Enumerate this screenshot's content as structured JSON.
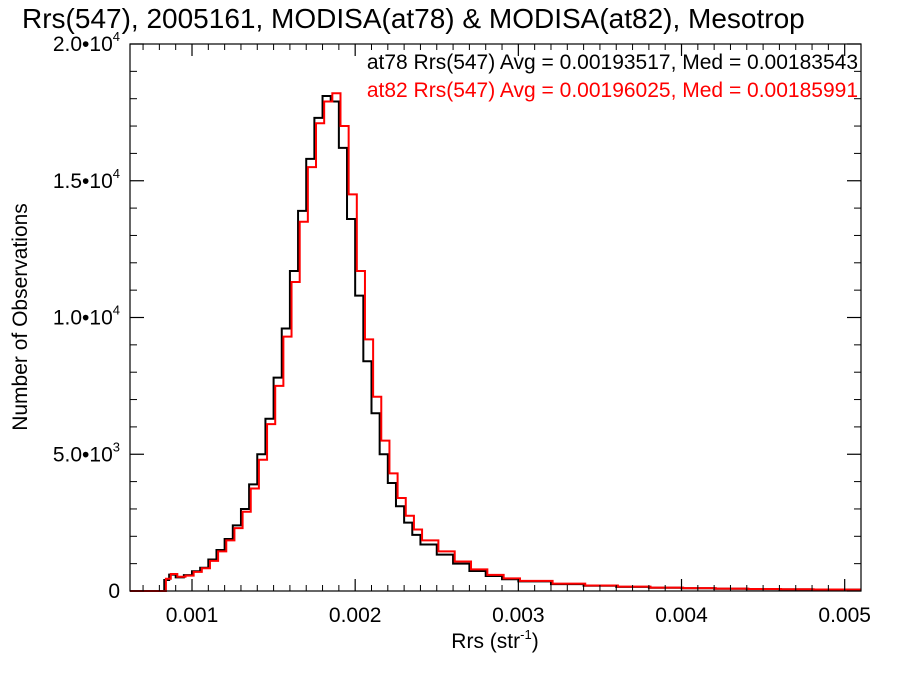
{
  "chart_data": {
    "type": "line",
    "title": "Rrs(547), 2005161, MODISA(at78) & MODISA(at82), Mesotrop",
    "xlabel": "Rrs (str",
    "xlabel_sup": "-1",
    "xlabel_close": ")",
    "ylabel": "Number of Observations",
    "xlim": [
      0.00062,
      0.0051
    ],
    "ylim": [
      0,
      20000
    ],
    "x_ticks": [
      {
        "value": 0.001,
        "label": "0.001"
      },
      {
        "value": 0.002,
        "label": "0.002"
      },
      {
        "value": 0.003,
        "label": "0.003"
      },
      {
        "value": 0.004,
        "label": "0.004"
      },
      {
        "value": 0.005,
        "label": "0.005"
      }
    ],
    "y_ticks": [
      {
        "value": 0,
        "mant": "0",
        "exp": ""
      },
      {
        "value": 5000,
        "mant": "5.0•10",
        "exp": "3"
      },
      {
        "value": 10000,
        "mant": "1.0•10",
        "exp": "4"
      },
      {
        "value": 15000,
        "mant": "1.5•10",
        "exp": "4"
      },
      {
        "value": 20000,
        "mant": "2.0•10",
        "exp": "4"
      }
    ],
    "grid": false,
    "legend_position": "top-right",
    "series": [
      {
        "name": "at78",
        "stats_label": "at78 Rrs(547) Avg = 0.00193517, Med = 0.00183543",
        "color": "#000000",
        "step": true,
        "points": [
          [
            0.00062,
            0
          ],
          [
            0.0008,
            0
          ],
          [
            0.00083,
            400
          ],
          [
            0.00086,
            600
          ],
          [
            0.0009,
            500
          ],
          [
            0.00095,
            580
          ],
          [
            0.001,
            720
          ],
          [
            0.00105,
            850
          ],
          [
            0.0011,
            1150
          ],
          [
            0.00115,
            1500
          ],
          [
            0.0012,
            1900
          ],
          [
            0.00125,
            2400
          ],
          [
            0.0013,
            3000
          ],
          [
            0.00135,
            3900
          ],
          [
            0.0014,
            5000
          ],
          [
            0.00145,
            6300
          ],
          [
            0.0015,
            7800
          ],
          [
            0.00155,
            9600
          ],
          [
            0.0016,
            11700
          ],
          [
            0.00165,
            13900
          ],
          [
            0.0017,
            15800
          ],
          [
            0.00175,
            17300
          ],
          [
            0.0018,
            18100
          ],
          [
            0.00185,
            17900
          ],
          [
            0.0019,
            16200
          ],
          [
            0.00195,
            13600
          ],
          [
            0.002,
            10800
          ],
          [
            0.00205,
            8400
          ],
          [
            0.0021,
            6500
          ],
          [
            0.00215,
            5000
          ],
          [
            0.0022,
            3950
          ],
          [
            0.00225,
            3100
          ],
          [
            0.0023,
            2500
          ],
          [
            0.00235,
            2050
          ],
          [
            0.0024,
            1700
          ],
          [
            0.0025,
            1330
          ],
          [
            0.0026,
            1000
          ],
          [
            0.0027,
            730
          ],
          [
            0.0028,
            550
          ],
          [
            0.0029,
            430
          ],
          [
            0.003,
            350
          ],
          [
            0.0032,
            250
          ],
          [
            0.0034,
            190
          ],
          [
            0.0036,
            150
          ],
          [
            0.0038,
            120
          ],
          [
            0.004,
            100
          ],
          [
            0.0042,
            80
          ],
          [
            0.0044,
            70
          ],
          [
            0.0046,
            60
          ],
          [
            0.0048,
            55
          ],
          [
            0.005,
            50
          ],
          [
            0.0051,
            50
          ]
        ]
      },
      {
        "name": "at82",
        "stats_label": "at82 Rrs(547) Avg = 0.00196025, Med = 0.00185991",
        "color": "#ff0000",
        "step": true,
        "points": [
          [
            0.00062,
            0
          ],
          [
            0.00081,
            0
          ],
          [
            0.00084,
            450
          ],
          [
            0.00087,
            620
          ],
          [
            0.00091,
            520
          ],
          [
            0.00096,
            560
          ],
          [
            0.00101,
            700
          ],
          [
            0.00106,
            830
          ],
          [
            0.00111,
            1100
          ],
          [
            0.00116,
            1450
          ],
          [
            0.00121,
            1850
          ],
          [
            0.00126,
            2300
          ],
          [
            0.00131,
            2900
          ],
          [
            0.00136,
            3750
          ],
          [
            0.00141,
            4800
          ],
          [
            0.00146,
            6100
          ],
          [
            0.00151,
            7500
          ],
          [
            0.00156,
            9300
          ],
          [
            0.00161,
            11300
          ],
          [
            0.00166,
            13500
          ],
          [
            0.00171,
            15500
          ],
          [
            0.00176,
            17100
          ],
          [
            0.00181,
            17900
          ],
          [
            0.00186,
            18200
          ],
          [
            0.00191,
            17000
          ],
          [
            0.00196,
            14500
          ],
          [
            0.00201,
            11700
          ],
          [
            0.00206,
            9200
          ],
          [
            0.00211,
            7100
          ],
          [
            0.00216,
            5500
          ],
          [
            0.00221,
            4300
          ],
          [
            0.00226,
            3400
          ],
          [
            0.00231,
            2750
          ],
          [
            0.00236,
            2250
          ],
          [
            0.00241,
            1850
          ],
          [
            0.00251,
            1450
          ],
          [
            0.00261,
            1080
          ],
          [
            0.00271,
            790
          ],
          [
            0.00281,
            590
          ],
          [
            0.00291,
            460
          ],
          [
            0.00301,
            370
          ],
          [
            0.00321,
            270
          ],
          [
            0.00341,
            200
          ],
          [
            0.00361,
            160
          ],
          [
            0.00381,
            125
          ],
          [
            0.00401,
            105
          ],
          [
            0.00421,
            85
          ],
          [
            0.00441,
            72
          ],
          [
            0.00461,
            62
          ],
          [
            0.00481,
            56
          ],
          [
            0.00501,
            52
          ],
          [
            0.0051,
            52
          ]
        ]
      }
    ]
  }
}
